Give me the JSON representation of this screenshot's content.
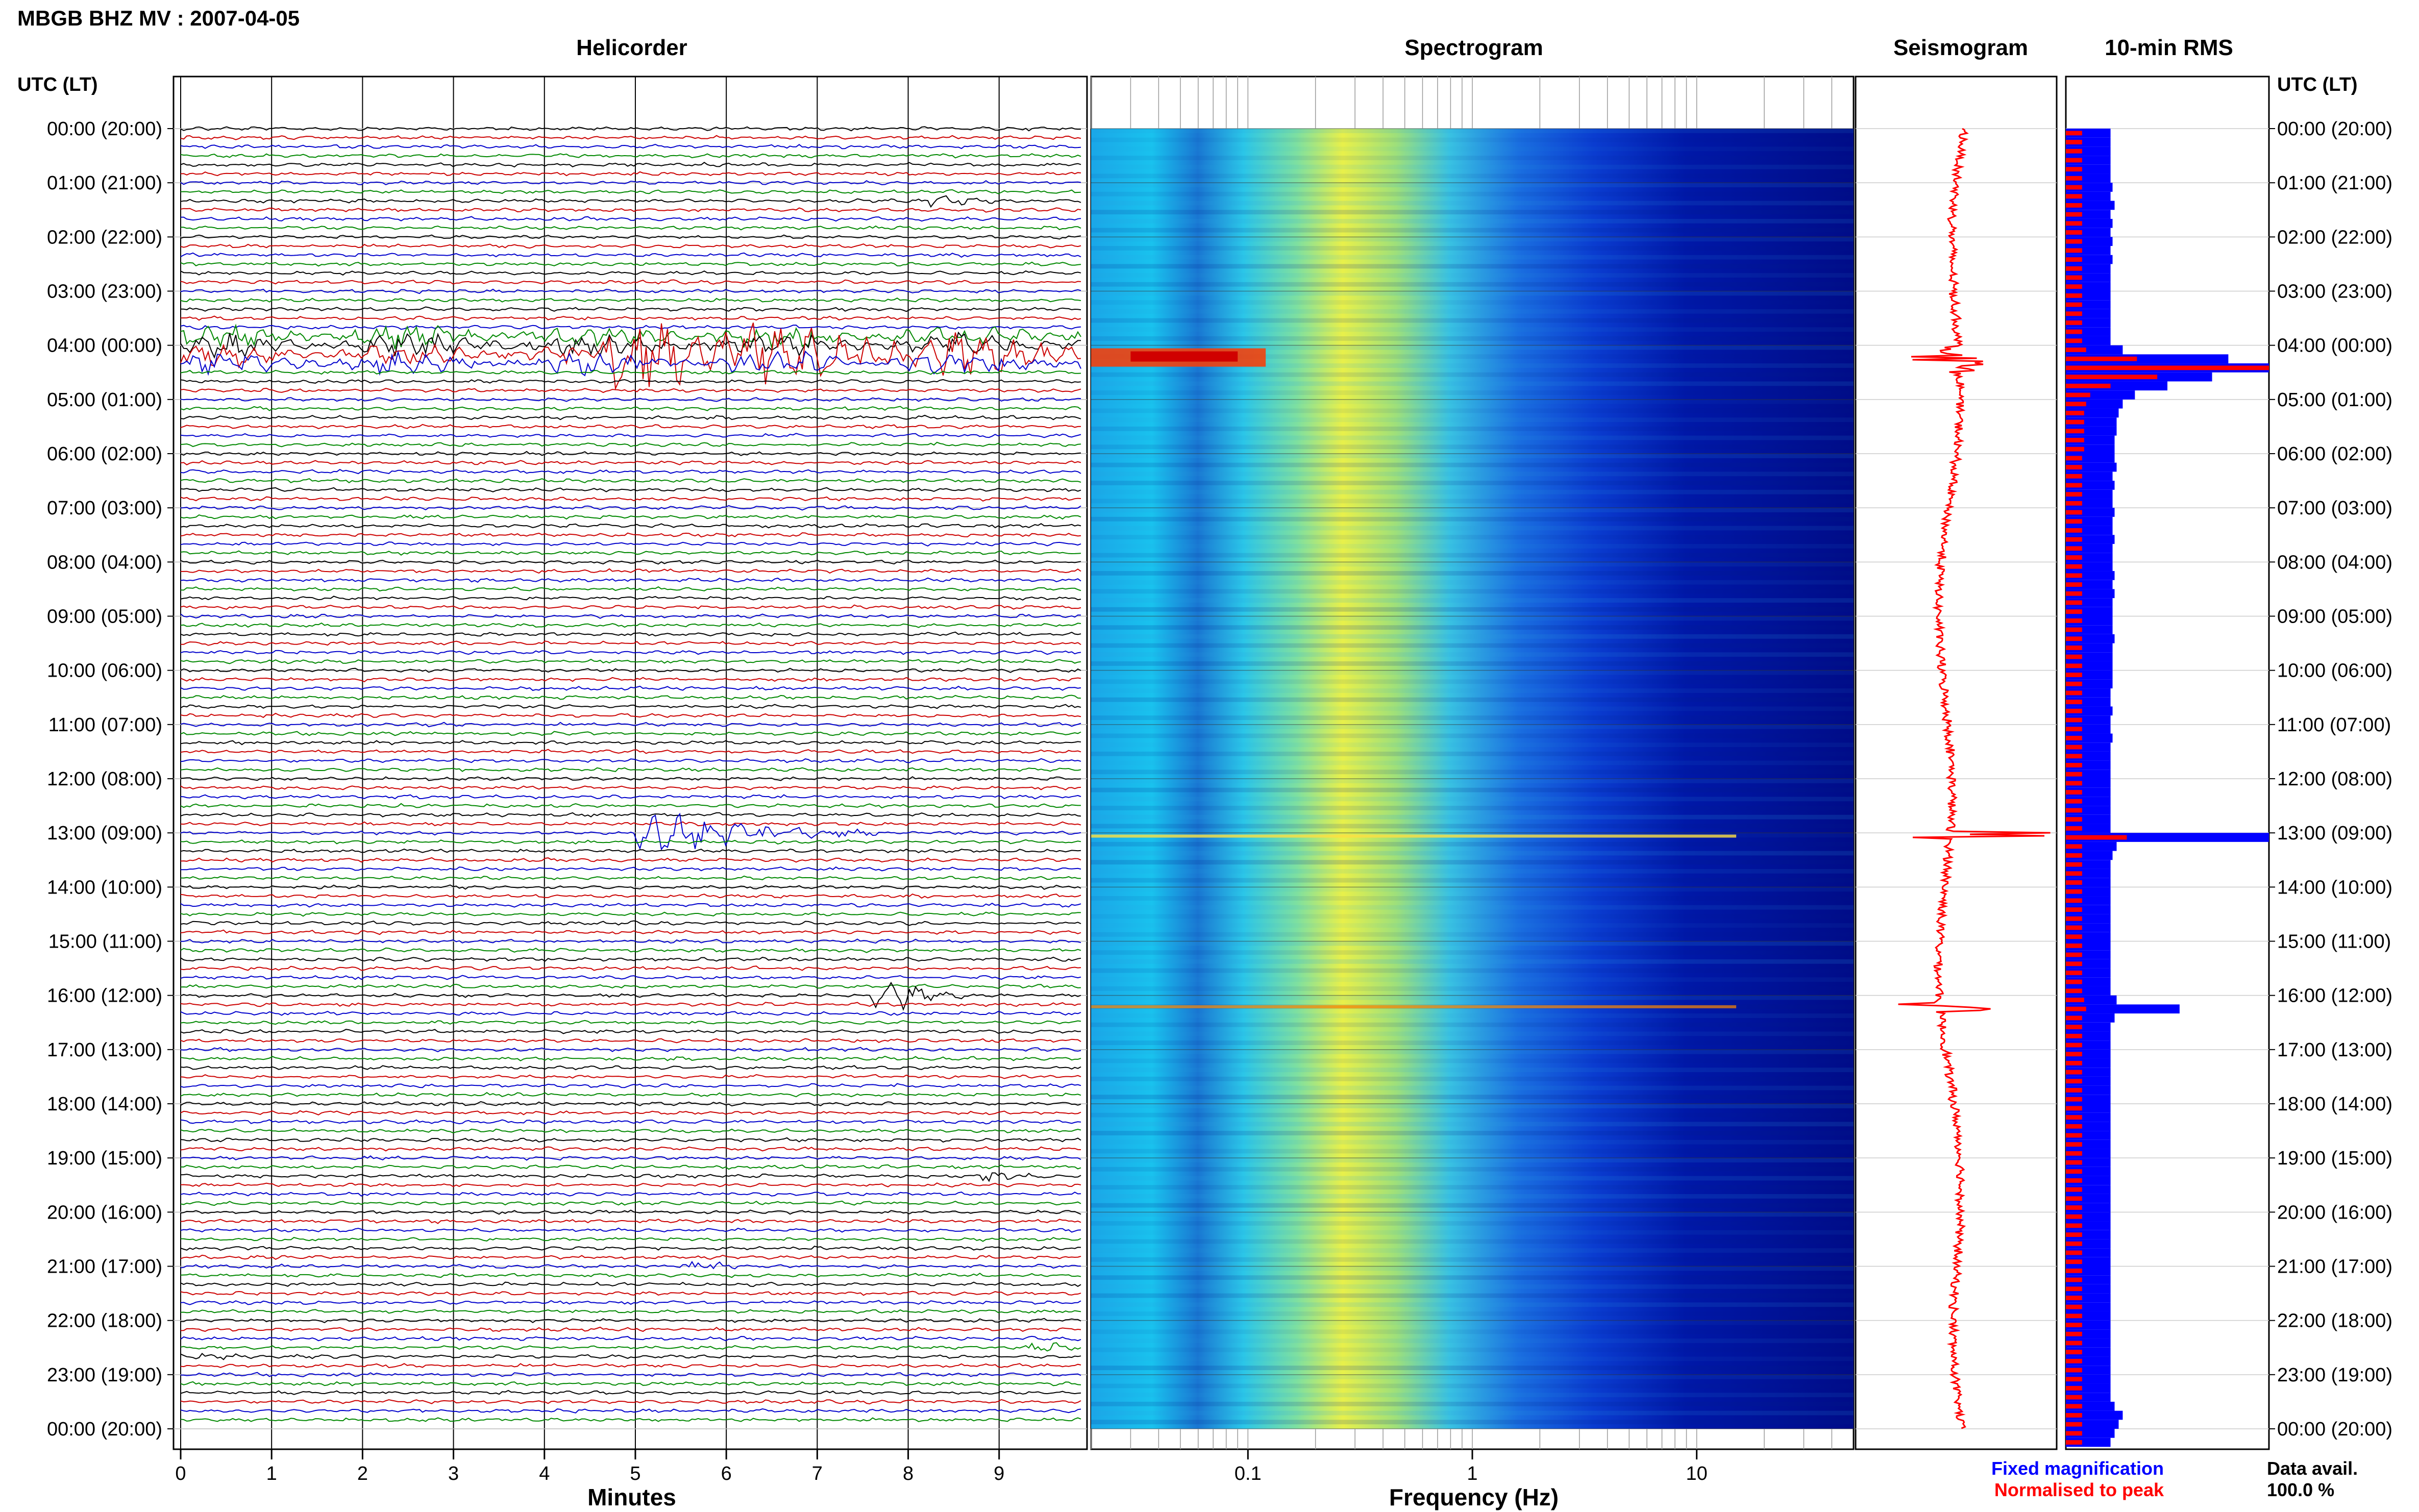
{
  "title": "MBGB BHZ MV : 2007-04-05",
  "panels": {
    "helicorder": "Helicorder",
    "spectrogram": "Spectrogram",
    "seismogram": "Seismogram",
    "rms": "10-min RMS"
  },
  "axis_labels": {
    "utc_left": "UTC (LT)",
    "utc_right": "UTC (LT)",
    "helicorder_x": "Minutes",
    "spectrogram_x": "Frequency (Hz)"
  },
  "legend": {
    "fixed": "Fixed magnification",
    "normalised": "Normalised to peak",
    "fixed_color": "#0000ff",
    "normalised_color": "#ff0000"
  },
  "data_avail": {
    "label": "Data avail.",
    "value": "100.0 %"
  },
  "chart_data": {
    "type": "helicorder",
    "time_ticks": [
      "00:00 (20:00)",
      "01:00 (21:00)",
      "02:00 (22:00)",
      "03:00 (23:00)",
      "04:00 (00:00)",
      "05:00 (01:00)",
      "06:00 (02:00)",
      "07:00 (03:00)",
      "08:00 (04:00)",
      "09:00 (05:00)",
      "10:00 (06:00)",
      "11:00 (07:00)",
      "12:00 (08:00)",
      "13:00 (09:00)",
      "14:00 (10:00)",
      "15:00 (11:00)",
      "16:00 (12:00)",
      "17:00 (13:00)",
      "18:00 (14:00)",
      "19:00 (15:00)",
      "20:00 (16:00)",
      "21:00 (17:00)",
      "22:00 (18:00)",
      "23:00 (19:00)",
      "00:00 (20:00)"
    ],
    "minute_ticks": [
      "0",
      "1",
      "2",
      "3",
      "4",
      "5",
      "6",
      "7",
      "8",
      "9"
    ],
    "minute_range": [
      0,
      10
    ],
    "lines_per_hour": 6,
    "trace_colors": [
      "#000000",
      "#cc0000",
      "#0000cc",
      "#008800"
    ],
    "freq_ticks": [
      "0.1",
      "1",
      "10"
    ],
    "freq_range": [
      0.02,
      50
    ],
    "events": [
      {
        "hour": 4.1,
        "minute": 5.0,
        "amplitude": 1.0,
        "duration_min": 9.5,
        "color": "#000000"
      },
      {
        "hour": 13.0,
        "minute": 5.3,
        "amplitude": 0.8,
        "duration_min": 2.5,
        "color": "#008800"
      },
      {
        "hour": 16.0,
        "minute": 7.9,
        "amplitude": 0.5,
        "duration_min": 0.8,
        "color": "#880000"
      },
      {
        "hour": 1.3,
        "minute": 8.5,
        "amplitude": 0.15,
        "duration_min": 0.6,
        "color": "#000000"
      },
      {
        "hour": 19.3,
        "minute": 9.1,
        "amplitude": 0.15,
        "duration_min": 0.5,
        "color": "#000000"
      },
      {
        "hour": 21.0,
        "minute": 5.8,
        "amplitude": 0.15,
        "duration_min": 0.5,
        "color": "#000088"
      },
      {
        "hour": 22.5,
        "minute": 9.6,
        "amplitude": 0.12,
        "duration_min": 0.5,
        "color": "#008800"
      },
      {
        "hour": 22.6,
        "minute": 0.2,
        "amplitude": 0.1,
        "duration_min": 0.6,
        "color": "#000000"
      }
    ],
    "rms_fixed": [
      0.22,
      0.22,
      0.22,
      0.22,
      0.22,
      0.22,
      0.23,
      0.22,
      0.24,
      0.22,
      0.23,
      0.22,
      0.23,
      0.22,
      0.23,
      0.22,
      0.22,
      0.22,
      0.22,
      0.22,
      0.22,
      0.22,
      0.22,
      0.22,
      0.28,
      0.8,
      1.0,
      0.72,
      0.5,
      0.34,
      0.28,
      0.26,
      0.25,
      0.25,
      0.24,
      0.24,
      0.24,
      0.25,
      0.23,
      0.24,
      0.23,
      0.23,
      0.24,
      0.23,
      0.23,
      0.24,
      0.23,
      0.23,
      0.23,
      0.24,
      0.23,
      0.24,
      0.23,
      0.23,
      0.23,
      0.23,
      0.24,
      0.23,
      0.23,
      0.23,
      0.23,
      0.23,
      0.22,
      0.22,
      0.23,
      0.22,
      0.22,
      0.23,
      0.22,
      0.22,
      0.22,
      0.22,
      0.22,
      0.22,
      0.22,
      0.22,
      0.22,
      0.22,
      1.0,
      0.25,
      0.23,
      0.22,
      0.22,
      0.22,
      0.22,
      0.22,
      0.22,
      0.22,
      0.22,
      0.22,
      0.22,
      0.22,
      0.22,
      0.22,
      0.22,
      0.22,
      0.25,
      0.56,
      0.24,
      0.22,
      0.22,
      0.22,
      0.22,
      0.22,
      0.22,
      0.22,
      0.22,
      0.22,
      0.22,
      0.22,
      0.22,
      0.22,
      0.22,
      0.22,
      0.22,
      0.22,
      0.22,
      0.22,
      0.22,
      0.22,
      0.22,
      0.22,
      0.22,
      0.22,
      0.22,
      0.22,
      0.22,
      0.22,
      0.22,
      0.22,
      0.22,
      0.22,
      0.22,
      0.22,
      0.22,
      0.22,
      0.22,
      0.22,
      0.22,
      0.22,
      0.22,
      0.24,
      0.28,
      0.26,
      0.24,
      0.22
    ],
    "rms_normalised": [
      0.08,
      0.08,
      0.08,
      0.08,
      0.08,
      0.08,
      0.08,
      0.08,
      0.08,
      0.08,
      0.08,
      0.08,
      0.08,
      0.08,
      0.08,
      0.08,
      0.08,
      0.08,
      0.08,
      0.08,
      0.08,
      0.08,
      0.08,
      0.08,
      0.1,
      0.35,
      1.0,
      0.45,
      0.22,
      0.12,
      0.1,
      0.09,
      0.09,
      0.09,
      0.09,
      0.09,
      0.08,
      0.08,
      0.08,
      0.08,
      0.08,
      0.08,
      0.08,
      0.08,
      0.08,
      0.08,
      0.08,
      0.08,
      0.08,
      0.08,
      0.08,
      0.08,
      0.08,
      0.08,
      0.08,
      0.08,
      0.08,
      0.08,
      0.08,
      0.08,
      0.08,
      0.08,
      0.08,
      0.08,
      0.08,
      0.08,
      0.08,
      0.08,
      0.08,
      0.08,
      0.08,
      0.08,
      0.08,
      0.08,
      0.08,
      0.08,
      0.08,
      0.08,
      0.3,
      0.08,
      0.08,
      0.08,
      0.08,
      0.08,
      0.08,
      0.08,
      0.08,
      0.08,
      0.08,
      0.08,
      0.08,
      0.08,
      0.08,
      0.08,
      0.08,
      0.08,
      0.09,
      0.1,
      0.08,
      0.08,
      0.08,
      0.08,
      0.08,
      0.08,
      0.08,
      0.08,
      0.08,
      0.08,
      0.08,
      0.08,
      0.08,
      0.08,
      0.08,
      0.08,
      0.08,
      0.08,
      0.08,
      0.08,
      0.08,
      0.08,
      0.08,
      0.08,
      0.08,
      0.08,
      0.08,
      0.08,
      0.08,
      0.08,
      0.08,
      0.08,
      0.08,
      0.08,
      0.08,
      0.08,
      0.08,
      0.08,
      0.08,
      0.08,
      0.08,
      0.08,
      0.08,
      0.08,
      0.08,
      0.08,
      0.08,
      0.08
    ]
  }
}
